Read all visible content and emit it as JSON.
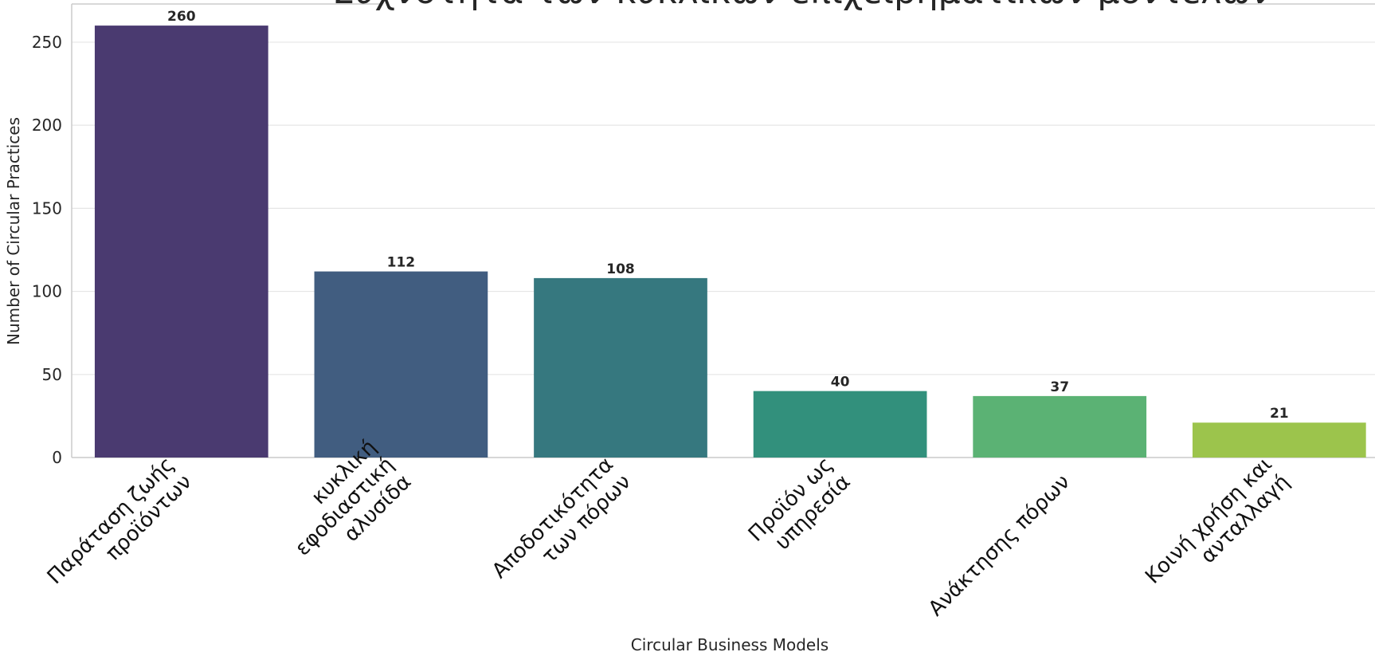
{
  "chart_data": {
    "type": "bar",
    "title": "Συχνότητα των κυκλικών επιχειρηματικών μοντέλων",
    "x_label": "Circular Business Models",
    "y_label": "Number of Circular Practices",
    "categories": [
      "Παράταση ζωής\nπροϊόντων",
      "κυκλική\nεφοδιαστική\nαλυσίδα",
      "Αποδοτικότητα\nτων πόρων",
      "Προϊόν ως\nυπηρεσία",
      "Ανάκτησης πόρων",
      "Κοινή χρήση και\nανταλλαγή"
    ],
    "values": [
      260,
      112,
      108,
      40,
      37,
      21
    ],
    "colors": [
      "#4a3a70",
      "#415d80",
      "#36787f",
      "#32907c",
      "#5bb274",
      "#9cc44c"
    ],
    "ylim": [
      0,
      273
    ],
    "yticks": [
      0,
      50,
      100,
      150,
      200,
      250
    ],
    "grid": true
  }
}
